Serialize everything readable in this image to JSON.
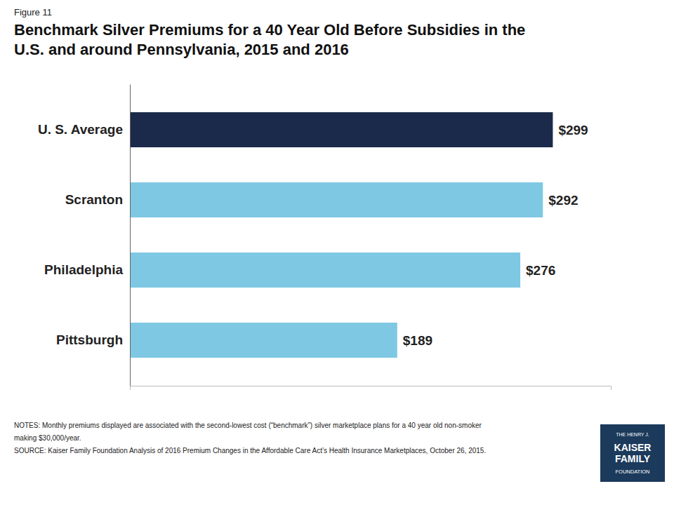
{
  "chart_data": {
    "type": "bar",
    "orientation": "horizontal",
    "title": "Benchmark Silver Premiums for a 40 Year Old Before Subsidies in the\nU.S. and around Pennsylvania, 2015 and 2016",
    "categories": [
      "Pittsburgh",
      "Philadelphia",
      "Scranton",
      "U. S. Average"
    ],
    "values": [
      189,
      276,
      292,
      299
    ],
    "value_labels": [
      "$189",
      "$276",
      "$292",
      "$299"
    ],
    "colors": [
      "#7ec8e3",
      "#7ec8e3",
      "#7ec8e3",
      "#1b2a4a"
    ],
    "xlim": [
      0,
      340
    ],
    "data_labels": true,
    "tick_labels": "y",
    "grid": false,
    "annotations": [
      "Figure 11",
      "NOTES: Monthly premiums displayed are associated with the second-lowest cost (“benchmark”) silver marketplace plans for a 40 year old non-smoker",
      "making $30,000/year.",
      "SOURCE: Kaiser Family Foundation Analysis of 2016 Premium Changes in the Affordable Care Act’s Health Insurance Marketplaces, October 26, 2015.",
      "THE HENRY J.",
      "KAISER",
      "FAMILY",
      "FOUNDATION"
    ]
  }
}
